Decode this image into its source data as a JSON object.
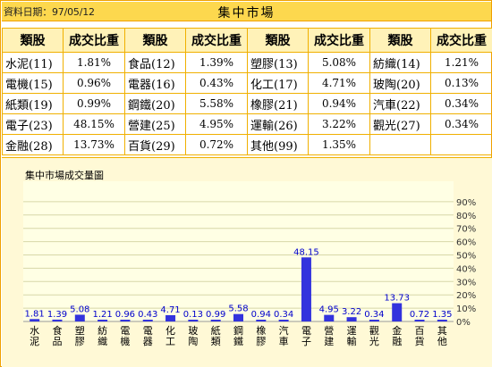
{
  "header": {
    "date_label": "資料日期：97/05/12",
    "title": "集中市場"
  },
  "table": {
    "headers": [
      "類股",
      "成交比重",
      "類股",
      "成交比重",
      "類股",
      "成交比重",
      "類股",
      "成交比重"
    ],
    "rows": [
      [
        {
          "name": "水泥(11)",
          "value": "1.81%"
        },
        {
          "name": "食品(12)",
          "value": "1.39%"
        },
        {
          "name": "塑膠(13)",
          "value": "5.08%"
        },
        {
          "name": "紡織(14)",
          "value": "1.21%"
        }
      ],
      [
        {
          "name": "電機(15)",
          "value": "0.96%"
        },
        {
          "name": "電器(16)",
          "value": "0.43%"
        },
        {
          "name": "化工(17)",
          "value": "4.71%"
        },
        {
          "name": "玻陶(20)",
          "value": "0.13%"
        }
      ],
      [
        {
          "name": "紙類(19)",
          "value": "0.99%"
        },
        {
          "name": "鋼鐵(20)",
          "value": "5.58%"
        },
        {
          "name": "橡膠(21)",
          "value": "0.94%"
        },
        {
          "name": "汽車(22)",
          "value": "0.34%"
        }
      ],
      [
        {
          "name": "電子(23)",
          "value": "48.15%"
        },
        {
          "name": "營建(25)",
          "value": "4.95%"
        },
        {
          "name": "運輸(26)",
          "value": "3.22%"
        },
        {
          "name": "觀光(27)",
          "value": "0.34%"
        }
      ],
      [
        {
          "name": "金融(28)",
          "value": "13.73%"
        },
        {
          "name": "百貨(29)",
          "value": "0.72%"
        },
        {
          "name": "其他(99)",
          "value": "1.35%"
        },
        {
          "name": "",
          "value": ""
        }
      ]
    ]
  },
  "chart_title": "集中市場成交量圖",
  "chart_data": {
    "type": "bar",
    "categories": [
      "水泥",
      "食品",
      "塑膠",
      "紡織",
      "電機",
      "電器",
      "化工",
      "玻陶",
      "紙類",
      "鋼鐵",
      "橡膠",
      "汽車",
      "電子",
      "營建",
      "運輸",
      "觀光",
      "金融",
      "百貨",
      "其他"
    ],
    "values": [
      1.81,
      1.39,
      5.08,
      1.21,
      0.96,
      0.43,
      4.71,
      0.13,
      0.99,
      5.58,
      0.94,
      0.34,
      48.15,
      4.95,
      3.22,
      0.34,
      13.73,
      0.72,
      1.35
    ],
    "value_labels": [
      "1.81",
      "1.39",
      "5.08",
      "1.21",
      "0.96",
      "0.43",
      "4.71",
      "0.13",
      "0.99",
      "5.58",
      "0.94",
      "0.34",
      "48.15",
      "4.95",
      "3.22",
      "0.34",
      "13.73",
      "0.72",
      "1.35"
    ],
    "y_ticks": [
      "0%",
      "10%",
      "20%",
      "30%",
      "40%",
      "50%",
      "60%",
      "70%",
      "80%",
      "90%"
    ],
    "ylim": [
      0,
      100
    ],
    "grid": true,
    "y_axis_side": "right",
    "bar_color": "#3333dd",
    "label_color": "#0000cc"
  },
  "colors": {
    "header_bg": "#fdd84e",
    "border": "#f0a000",
    "table_header_bg": "#fff2b8",
    "chart_bg": "#fff9d6"
  }
}
